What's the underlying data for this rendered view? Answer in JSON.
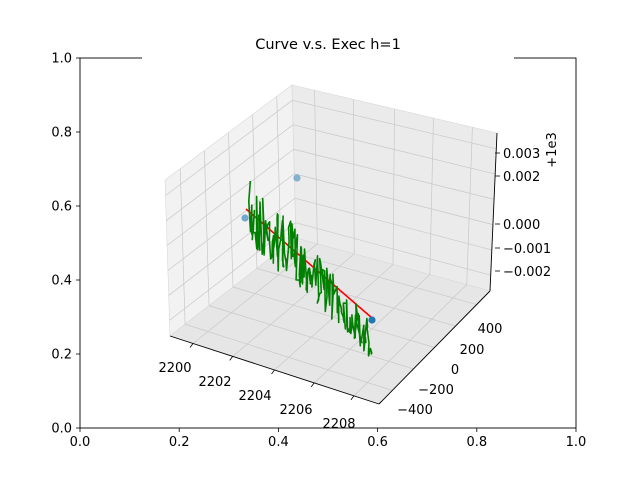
{
  "chart_data": [
    {
      "type": "axes",
      "role": "outer 2D frame",
      "xlim": [
        0.0,
        1.0
      ],
      "ylim": [
        0.0,
        1.0
      ],
      "x_ticks": [
        "0.0",
        "0.2",
        "0.4",
        "0.6",
        "0.8",
        "1.0"
      ],
      "y_ticks": [
        "0.0",
        "0.2",
        "0.4",
        "0.6",
        "0.8",
        "1.0"
      ]
    },
    {
      "type": "line",
      "projection": "3d",
      "title": "Curve v.s. Exec h=1",
      "x_ticks": [
        "2200",
        "2202",
        "2204",
        "2206",
        "2208"
      ],
      "y_ticks": [
        "400",
        "200",
        "0",
        "−200",
        "−400"
      ],
      "z_ticks": [
        "0.003",
        "0.002",
        "0.000",
        "−0.001",
        "−0.002"
      ],
      "z_offset_label": "+1e3",
      "grid": true,
      "series": [
        {
          "role": "executed trajectory",
          "color": "#008000",
          "style": "noisy line"
        },
        {
          "role": "reference curve",
          "color": "#ff0000",
          "style": "straight line"
        },
        {
          "role": "endpoints",
          "color": "#1f77b4",
          "style": "markers"
        }
      ]
    }
  ]
}
